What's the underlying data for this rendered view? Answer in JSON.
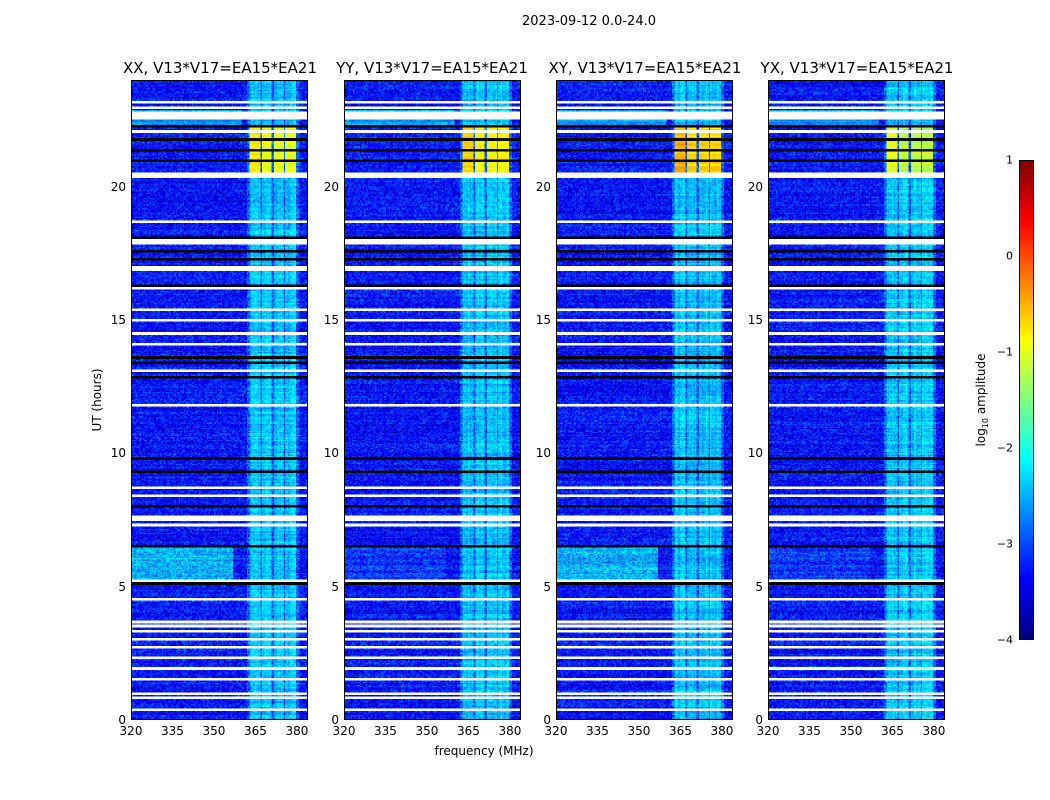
{
  "chart_data": {
    "type": "heatmap",
    "title": "2023-09-12 0.0-24.0",
    "xlabel": "frequency (MHz)",
    "ylabel": "UT (hours)",
    "xlim": [
      320,
      384
    ],
    "ylim": [
      0,
      24
    ],
    "xticks": [
      "320",
      "335",
      "350",
      "365",
      "380"
    ],
    "xtick_values": [
      320,
      335,
      350,
      365,
      380
    ],
    "yticks": [
      "0",
      "5",
      "10",
      "15",
      "20"
    ],
    "ytick_values": [
      0,
      5,
      10,
      15,
      20
    ],
    "colorbar": {
      "label": "log10 amplitude",
      "label_main": "log",
      "label_sub": "10",
      "label_rest": " amplitude",
      "range": [
        -4,
        1
      ],
      "ticks": [
        "1",
        "0",
        "−1",
        "−2",
        "−3",
        "−4"
      ],
      "tick_values": [
        1,
        0,
        -1,
        -2,
        -3,
        -4
      ],
      "colormap": "jet"
    },
    "panels": [
      {
        "title": "XX, V13*V17=EA15*EA21",
        "hires_block_level": -1.0,
        "lowfreq_band_level": -2.5
      },
      {
        "title": "YY, V13*V17=EA15*EA21",
        "hires_block_level": -0.9,
        "lowfreq_band_level": -3.1
      },
      {
        "title": "XY, V13*V17=EA15*EA21",
        "hires_block_level": -0.7,
        "lowfreq_band_level": -2.5
      },
      {
        "title": "YX, V13*V17=EA15*EA21",
        "hires_block_level": -1.2,
        "lowfreq_band_level": -3.1
      }
    ],
    "background_level": -3.3,
    "rfi_channels_mhz": [
      [
        363,
        367
      ],
      [
        367.5,
        371
      ],
      [
        372,
        375.5
      ],
      [
        376,
        380
      ]
    ],
    "rfi_level": -2.4,
    "high_block_hours": [
      20.5,
      22.3
    ],
    "flagged_hours_white": [
      0.35,
      0.8,
      0.95,
      1.5,
      1.9,
      2.3,
      2.7,
      3.0,
      3.3,
      3.5,
      3.65,
      4.5,
      5.2,
      7.3,
      7.5,
      7.6,
      8.4,
      8.7,
      11.8,
      13.1,
      14.1,
      14.5,
      15.0,
      15.4,
      16.2,
      16.9,
      17.0,
      17.9,
      18.0,
      18.7,
      20.4,
      20.5,
      22.1,
      22.6,
      22.7,
      22.8,
      23.0,
      23.2
    ],
    "flagged_hours_black": [
      5.1,
      6.5,
      8.0,
      9.3,
      9.8,
      12.85,
      13.4,
      13.6,
      16.3,
      17.3,
      17.6,
      18.1,
      21.0,
      21.4,
      21.8,
      22.3
    ]
  }
}
